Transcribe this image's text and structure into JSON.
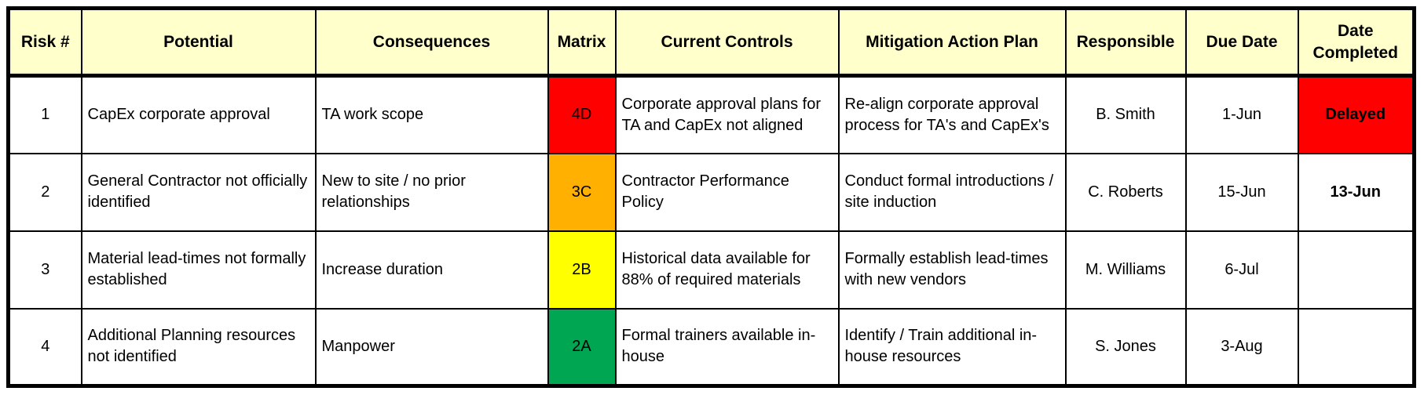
{
  "colors": {
    "header_bg": "#FFFFCC",
    "grid_line": "#000000",
    "matrix_red": "#FF0000",
    "matrix_orange": "#FFB000",
    "matrix_yellow": "#FFFF00",
    "matrix_green": "#00A651",
    "status_delayed_bg": "#FF0000"
  },
  "columns": {
    "risk": "Risk #",
    "potential": "Potential",
    "consequences": "Consequences",
    "matrix": "Matrix",
    "controls": "Current Controls",
    "mitigation": "Mitigation Action Plan",
    "responsible": "Responsible",
    "due": "Due Date",
    "completed": "Date Completed"
  },
  "rows": [
    {
      "risk": "1",
      "potential": "CapEx corporate approval",
      "consequences": "TA work scope",
      "matrix": {
        "label": "4D",
        "bg": "#FF0000"
      },
      "controls": "Corporate approval plans for TA and CapEx not aligned",
      "mitigation": "Re-align corporate approval process for TA's and CapEx's",
      "responsible": "B. Smith",
      "due": "1-Jun",
      "completed": {
        "label": "Delayed",
        "bg": "#FF0000"
      }
    },
    {
      "risk": "2",
      "potential": "General Contractor not officially identified",
      "consequences": "New to site / no prior relationships",
      "matrix": {
        "label": "3C",
        "bg": "#FFB000"
      },
      "controls": "Contractor Performance Policy",
      "mitigation": "Conduct formal introductions / site induction",
      "responsible": "C. Roberts",
      "due": "15-Jun",
      "completed": {
        "label": "13-Jun",
        "bg": ""
      }
    },
    {
      "risk": "3",
      "potential": "Material lead-times not formally established",
      "consequences": "Increase duration",
      "matrix": {
        "label": "2B",
        "bg": "#FFFF00"
      },
      "controls": "Historical data available for 88% of required materials",
      "mitigation": "Formally establish lead-times with new vendors",
      "responsible": "M. Williams",
      "due": "6-Jul",
      "completed": {
        "label": "",
        "bg": ""
      }
    },
    {
      "risk": "4",
      "potential": "Additional Planning resources not identified",
      "consequences": "Manpower",
      "matrix": {
        "label": "2A",
        "bg": "#00A651"
      },
      "controls": "Formal trainers available in-house",
      "mitigation": "Identify / Train additional in-house resources",
      "responsible": "S. Jones",
      "due": "3-Aug",
      "completed": {
        "label": "",
        "bg": ""
      }
    }
  ]
}
